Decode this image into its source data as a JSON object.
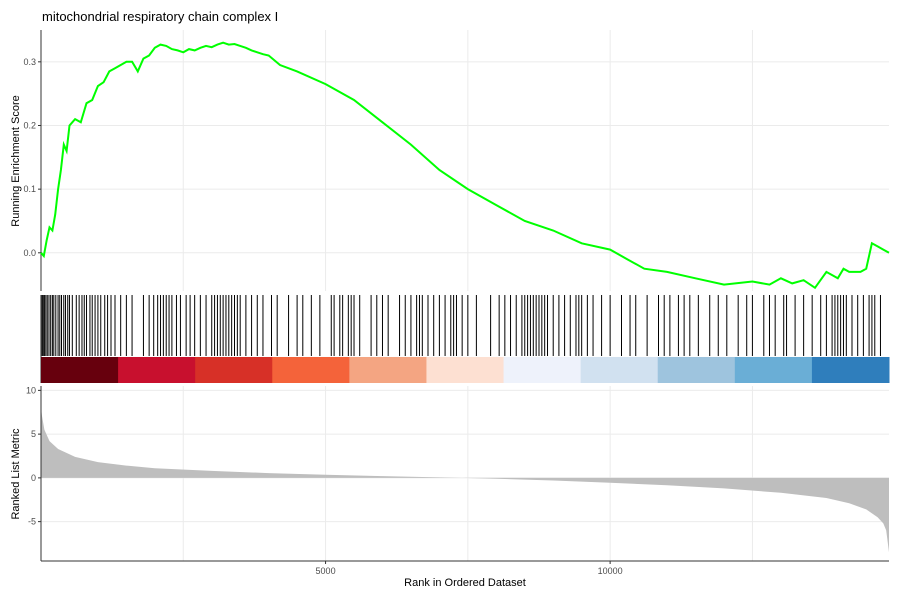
{
  "chart_data": {
    "type": "line",
    "title": "mitochondrial respiratory chain complex I",
    "xlabel": "Rank in Ordered Dataset",
    "x_ticks": [
      5000,
      10000
    ],
    "xlim": [
      0,
      14900
    ],
    "panels": {
      "running_score": {
        "ylabel": "Running Enrichment Score",
        "ylim": [
          -0.06,
          0.35
        ],
        "y_ticks": [
          0.0,
          0.1,
          0.2,
          0.3
        ],
        "line_color": "#00ff00",
        "x": [
          0,
          50,
          100,
          150,
          200,
          250,
          300,
          350,
          400,
          450,
          500,
          550,
          600,
          700,
          800,
          900,
          1000,
          1100,
          1200,
          1300,
          1400,
          1500,
          1600,
          1700,
          1800,
          1900,
          2000,
          2100,
          2200,
          2300,
          2400,
          2500,
          2600,
          2700,
          2800,
          2900,
          3000,
          3100,
          3200,
          3300,
          3400,
          3500,
          3600,
          3700,
          3800,
          3900,
          4000,
          4200,
          4500,
          5000,
          5500,
          6000,
          6500,
          7000,
          7500,
          8000,
          8500,
          9000,
          9500,
          10000,
          10300,
          10600,
          11000,
          11500,
          12000,
          12500,
          12800,
          13000,
          13200,
          13400,
          13600,
          13800,
          14000,
          14100,
          14200,
          14400,
          14500,
          14600,
          14700,
          14800,
          14900
        ],
        "y": [
          0.0,
          -0.005,
          0.02,
          0.04,
          0.035,
          0.06,
          0.1,
          0.13,
          0.17,
          0.16,
          0.2,
          0.205,
          0.21,
          0.205,
          0.235,
          0.24,
          0.262,
          0.268,
          0.285,
          0.29,
          0.295,
          0.3,
          0.3,
          0.285,
          0.305,
          0.31,
          0.322,
          0.327,
          0.325,
          0.32,
          0.318,
          0.315,
          0.32,
          0.318,
          0.322,
          0.325,
          0.323,
          0.327,
          0.33,
          0.327,
          0.328,
          0.325,
          0.322,
          0.318,
          0.315,
          0.312,
          0.31,
          0.295,
          0.285,
          0.265,
          0.24,
          0.205,
          0.17,
          0.13,
          0.1,
          0.075,
          0.05,
          0.035,
          0.015,
          0.005,
          -0.01,
          -0.025,
          -0.03,
          -0.04,
          -0.05,
          -0.045,
          -0.05,
          -0.04,
          -0.048,
          -0.043,
          -0.055,
          -0.03,
          -0.04,
          -0.025,
          -0.03,
          -0.03,
          -0.025,
          0.015,
          0.01,
          0.005,
          0.0
        ]
      },
      "gene_hits": {
        "segments": [
          1,
          2,
          3,
          4,
          5,
          6,
          7,
          8,
          9,
          10,
          11
        ],
        "hits": [
          5,
          28,
          40,
          60,
          85,
          110,
          140,
          170,
          200,
          225,
          260,
          300,
          330,
          360,
          400,
          430,
          470,
          500,
          550,
          620,
          670,
          720,
          760,
          800,
          860,
          900,
          950,
          1000,
          1050,
          1120,
          1170,
          1230,
          1300,
          1400,
          1500,
          1600,
          1800,
          1900,
          1980,
          2050,
          2100,
          2150,
          2200,
          2250,
          2300,
          2380,
          2450,
          2550,
          2620,
          2700,
          2800,
          2900,
          3000,
          3050,
          3100,
          3150,
          3200,
          3250,
          3300,
          3350,
          3400,
          3450,
          3500,
          3600,
          3700,
          3800,
          3900,
          4050,
          4150,
          4350,
          4500,
          4600,
          4750,
          4900,
          5100,
          5150,
          5250,
          5300,
          5400,
          5450,
          5500,
          5600,
          5800,
          5900,
          6000,
          6100,
          6300,
          6400,
          6500,
          6600,
          6650,
          6700,
          6800,
          6900,
          7000,
          7100,
          7200,
          7250,
          7300,
          7400,
          7500,
          7650,
          7900,
          8050,
          8150,
          8250,
          8350,
          8450,
          8500,
          8550,
          8600,
          8650,
          8700,
          8750,
          8800,
          8850,
          8900,
          9000,
          9100,
          9200,
          9300,
          9400,
          9450,
          9500,
          9600,
          9700,
          9850,
          10000,
          10200,
          10350,
          10450,
          10650,
          10850,
          10950,
          11050,
          11200,
          11300,
          11400,
          11550,
          11750,
          11900,
          12050,
          12250,
          12400,
          12500,
          12700,
          12800,
          12900,
          13050,
          13100,
          13250,
          13400,
          13550,
          13700,
          13800,
          13900,
          13950,
          14000,
          14050,
          14100,
          14150,
          14250,
          14350,
          14450,
          14550,
          14600,
          14650,
          14750
        ]
      },
      "ranked_metric": {
        "ylabel": "Ranked List Metric",
        "ylim": [
          -9.5,
          10.5
        ],
        "y_ticks": [
          -5,
          0,
          5,
          10
        ],
        "fill_color": "#bebebe",
        "x": [
          0,
          20,
          60,
          150,
          300,
          600,
          1000,
          1500,
          2000,
          3000,
          4000,
          5000,
          6000,
          7000,
          7400,
          8000,
          9000,
          10000,
          11000,
          12000,
          13000,
          13800,
          14200,
          14500,
          14700,
          14800,
          14850,
          14900
        ],
        "y": [
          8.0,
          7.0,
          5.5,
          4.2,
          3.3,
          2.4,
          1.8,
          1.4,
          1.1,
          0.8,
          0.55,
          0.35,
          0.2,
          0.05,
          0.0,
          -0.1,
          -0.3,
          -0.55,
          -0.85,
          -1.2,
          -1.7,
          -2.3,
          -2.9,
          -3.6,
          -4.5,
          -5.2,
          -6.0,
          -8.5
        ]
      }
    }
  }
}
